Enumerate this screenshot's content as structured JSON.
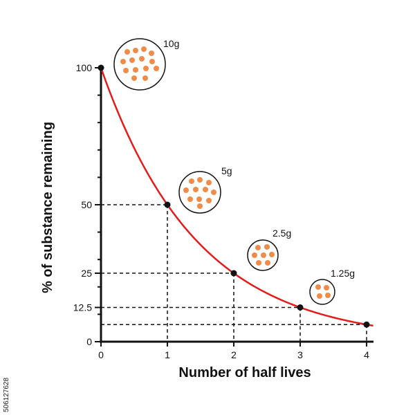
{
  "chart_data": {
    "type": "line",
    "xlabel": "Number of half lives",
    "ylabel": "% of  substance remaining",
    "xticks": [
      "0",
      "1",
      "2",
      "3",
      "4"
    ],
    "yticks": [
      "0",
      "12.5",
      "25",
      "50",
      "100"
    ],
    "ytick_values": [
      0,
      12.5,
      25,
      50,
      100
    ],
    "xlim": [
      0,
      4
    ],
    "ylim": [
      0,
      100
    ],
    "series": [
      {
        "x": [
          0,
          1,
          2,
          3,
          4
        ],
        "y": [
          100,
          50,
          25,
          12.5,
          6.25
        ],
        "color": "#e31b1b"
      }
    ],
    "points": [
      {
        "x": 0,
        "y": 100,
        "mass": "10g",
        "particles": 14
      },
      {
        "x": 1,
        "y": 50,
        "mass": "5g",
        "particles": 11
      },
      {
        "x": 2,
        "y": 25,
        "mass": "2.5g",
        "particles": 7
      },
      {
        "x": 3,
        "y": 12.5,
        "mass": "1.25g",
        "particles": 4
      },
      {
        "x": 4,
        "y": 6.25,
        "mass": "",
        "particles": 0
      }
    ],
    "grid": false,
    "particle_color": "#f08c4a"
  },
  "watermark": {
    "image_id": "506127628"
  }
}
